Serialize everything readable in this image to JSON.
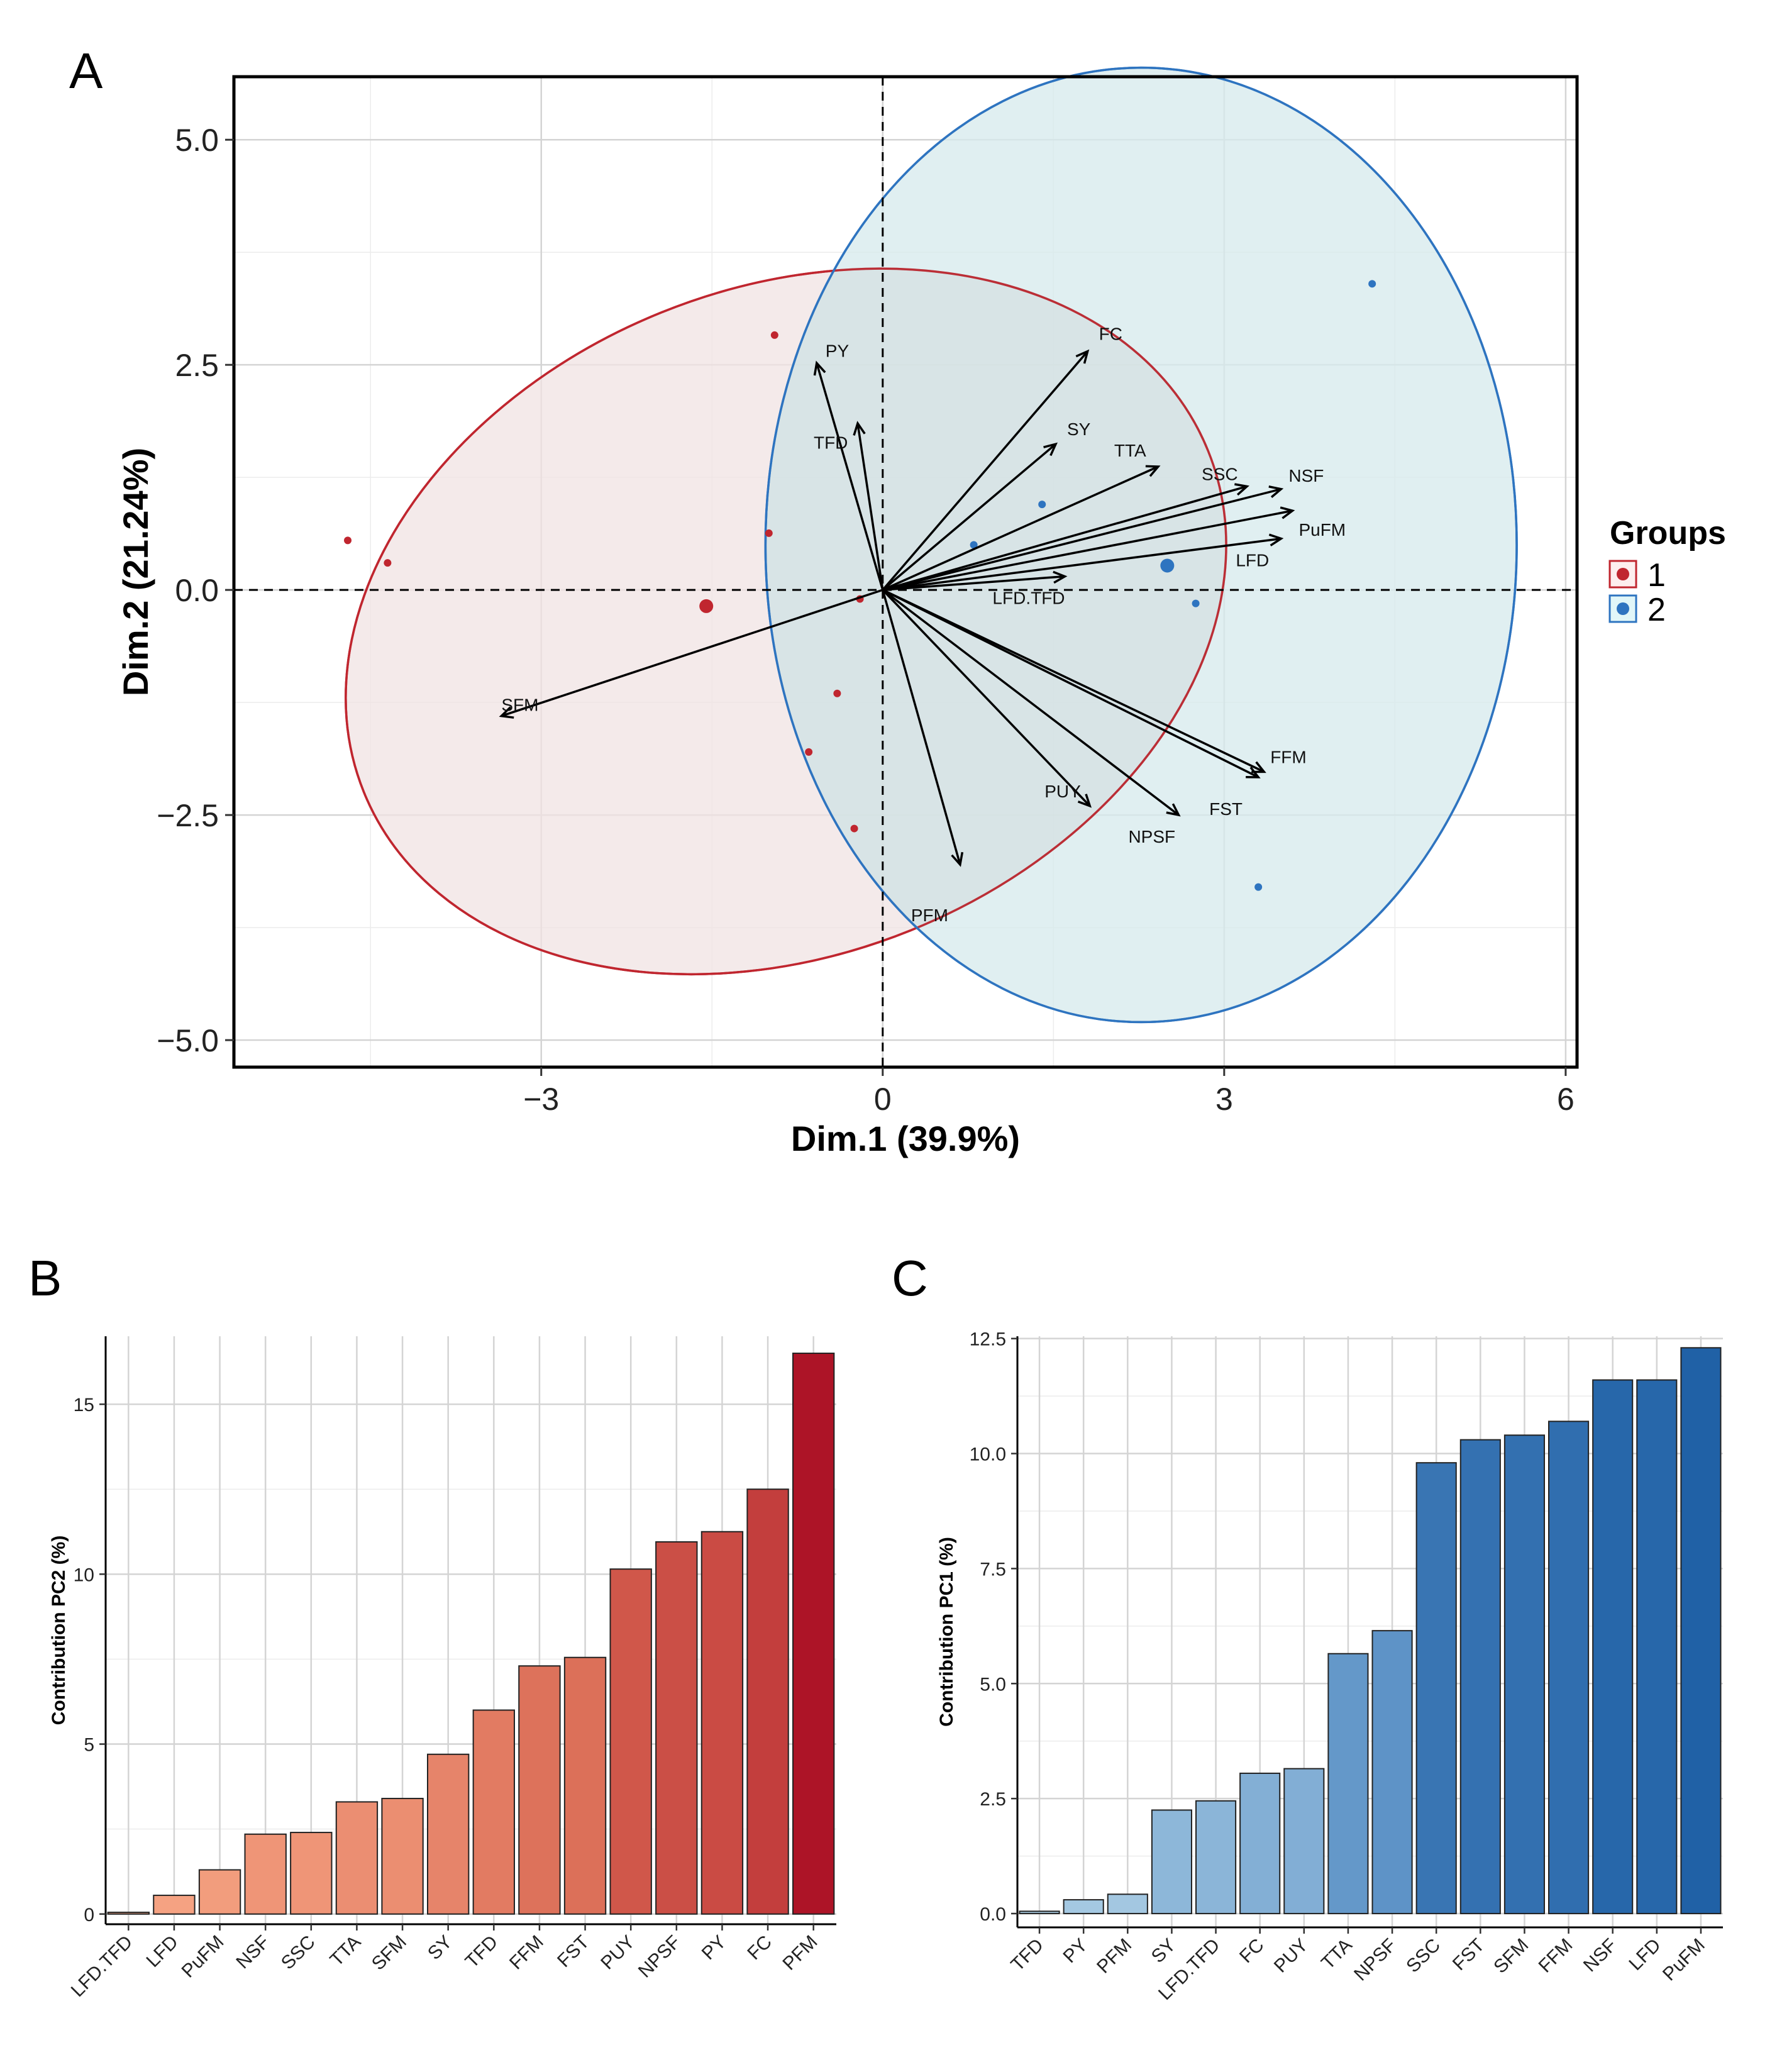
{
  "panels": {
    "A": "A",
    "B": "B",
    "C": "C"
  },
  "chart_data": [
    {
      "id": "A",
      "type": "scatter",
      "subtype": "PCA biplot",
      "xlabel": "Dim.1 (39.9%)",
      "ylabel": "Dim.2 (21.24%)",
      "xlim": [
        -5.7,
        6.1
      ],
      "ylim": [
        -5.3,
        5.7
      ],
      "xticks": [
        -3,
        0,
        3,
        6
      ],
      "xtick_labels": [
        "−3",
        "0",
        "3",
        "6"
      ],
      "yticks": [
        -5,
        -2.5,
        0,
        2.5,
        5
      ],
      "ytick_labels": [
        "−5.0",
        "−2.5",
        "0.0",
        "2.5",
        "5.0"
      ],
      "grid": true,
      "legend": {
        "title": "Groups",
        "position": "right",
        "entries": [
          "1",
          "2"
        ]
      },
      "groups": [
        {
          "name": "1",
          "color": "#c0262f",
          "fill": "#fdeeee",
          "points": [
            [
              -4.7,
              0.55
            ],
            [
              -4.35,
              0.3
            ],
            [
              -1.0,
              0.63
            ],
            [
              -0.95,
              2.83
            ],
            [
              -0.4,
              -1.15
            ],
            [
              -0.65,
              -1.8
            ],
            [
              -0.25,
              -2.65
            ],
            [
              -0.2,
              -0.1
            ]
          ],
          "centroid": [
            -1.55,
            -0.18
          ],
          "ellipse": {
            "cx": -0.85,
            "cy": -0.35,
            "rx": 4.0,
            "ry": 3.7,
            "angle_deg": -22
          }
        },
        {
          "name": "2",
          "color": "#2e74c0",
          "fill": "#e1f6f8",
          "points": [
            [
              1.4,
              0.95
            ],
            [
              0.8,
              0.5
            ],
            [
              2.75,
              -0.15
            ],
            [
              4.3,
              3.4
            ],
            [
              3.3,
              -3.3
            ]
          ],
          "centroid": [
            2.5,
            0.27
          ],
          "ellipse": {
            "cx": 2.27,
            "cy": 0.5,
            "rx": 3.3,
            "ry": 5.3,
            "angle_deg": 0
          }
        }
      ],
      "variables": [
        {
          "name": "FC",
          "x": 1.8,
          "y": 2.65
        },
        {
          "name": "PY",
          "x": -0.58,
          "y": 2.52
        },
        {
          "name": "TFD",
          "x": -0.22,
          "y": 1.85
        },
        {
          "name": "SY",
          "x": 1.52,
          "y": 1.62
        },
        {
          "name": "TTA",
          "x": 2.42,
          "y": 1.37
        },
        {
          "name": "SSC",
          "x": 3.2,
          "y": 1.15
        },
        {
          "name": "NSF",
          "x": 3.5,
          "y": 1.12
        },
        {
          "name": "PuFM",
          "x": 3.6,
          "y": 0.88
        },
        {
          "name": "LFD",
          "x": 3.5,
          "y": 0.57
        },
        {
          "name": "LFD.TFD",
          "x": 1.6,
          "y": 0.15
        },
        {
          "name": "SFM",
          "x": -3.35,
          "y": -1.4
        },
        {
          "name": "PFM",
          "x": 0.68,
          "y": -3.05
        },
        {
          "name": "PUY",
          "x": 1.82,
          "y": -2.4
        },
        {
          "name": "NPSF",
          "x": 2.6,
          "y": -2.5
        },
        {
          "name": "FFM",
          "x": 3.35,
          "y": -2.02
        },
        {
          "name": "FST",
          "x": 3.3,
          "y": -2.08
        }
      ]
    },
    {
      "id": "B",
      "type": "bar",
      "categories": [
        "LFD.TFD",
        "LFD",
        "PuFM",
        "NSF",
        "SSC",
        "TTA",
        "SFM",
        "SY",
        "TFD",
        "FFM",
        "FST",
        "PUY",
        "NPSF",
        "PY",
        "FC",
        "PFM"
      ],
      "values": [
        0.05,
        0.55,
        1.3,
        2.35,
        2.4,
        3.3,
        3.4,
        4.7,
        6.0,
        7.3,
        7.55,
        10.15,
        10.95,
        11.25,
        12.5,
        16.5
      ],
      "xlabel": "",
      "ylabel": "Contribution PC2 (%)",
      "ylim": [
        -0.3,
        17.0
      ],
      "yticks": [
        0,
        5,
        10,
        15
      ],
      "ytick_labels": [
        "0",
        "5",
        "10",
        "15"
      ],
      "grid": true,
      "colormap": "Reds"
    },
    {
      "id": "C",
      "type": "bar",
      "categories": [
        "TFD",
        "PY",
        "PFM",
        "SY",
        "LFD.TFD",
        "FC",
        "PUY",
        "TTA",
        "NPSF",
        "SSC",
        "FST",
        "SFM",
        "FFM",
        "NSF",
        "LFD",
        "PuFM"
      ],
      "values": [
        0.05,
        0.3,
        0.42,
        2.25,
        2.45,
        3.05,
        3.15,
        5.65,
        6.15,
        9.8,
        10.3,
        10.4,
        10.7,
        11.6,
        11.6,
        12.3
      ],
      "xlabel": "",
      "ylabel": "Contribution PC1 (%)",
      "ylim": [
        -0.3,
        12.55
      ],
      "yticks": [
        0,
        2.5,
        5,
        7.5,
        10,
        12.5
      ],
      "ytick_labels": [
        "0.0",
        "2.5",
        "5.0",
        "7.5",
        "10.0",
        "12.5"
      ],
      "grid": true,
      "colormap": "Blues"
    }
  ]
}
